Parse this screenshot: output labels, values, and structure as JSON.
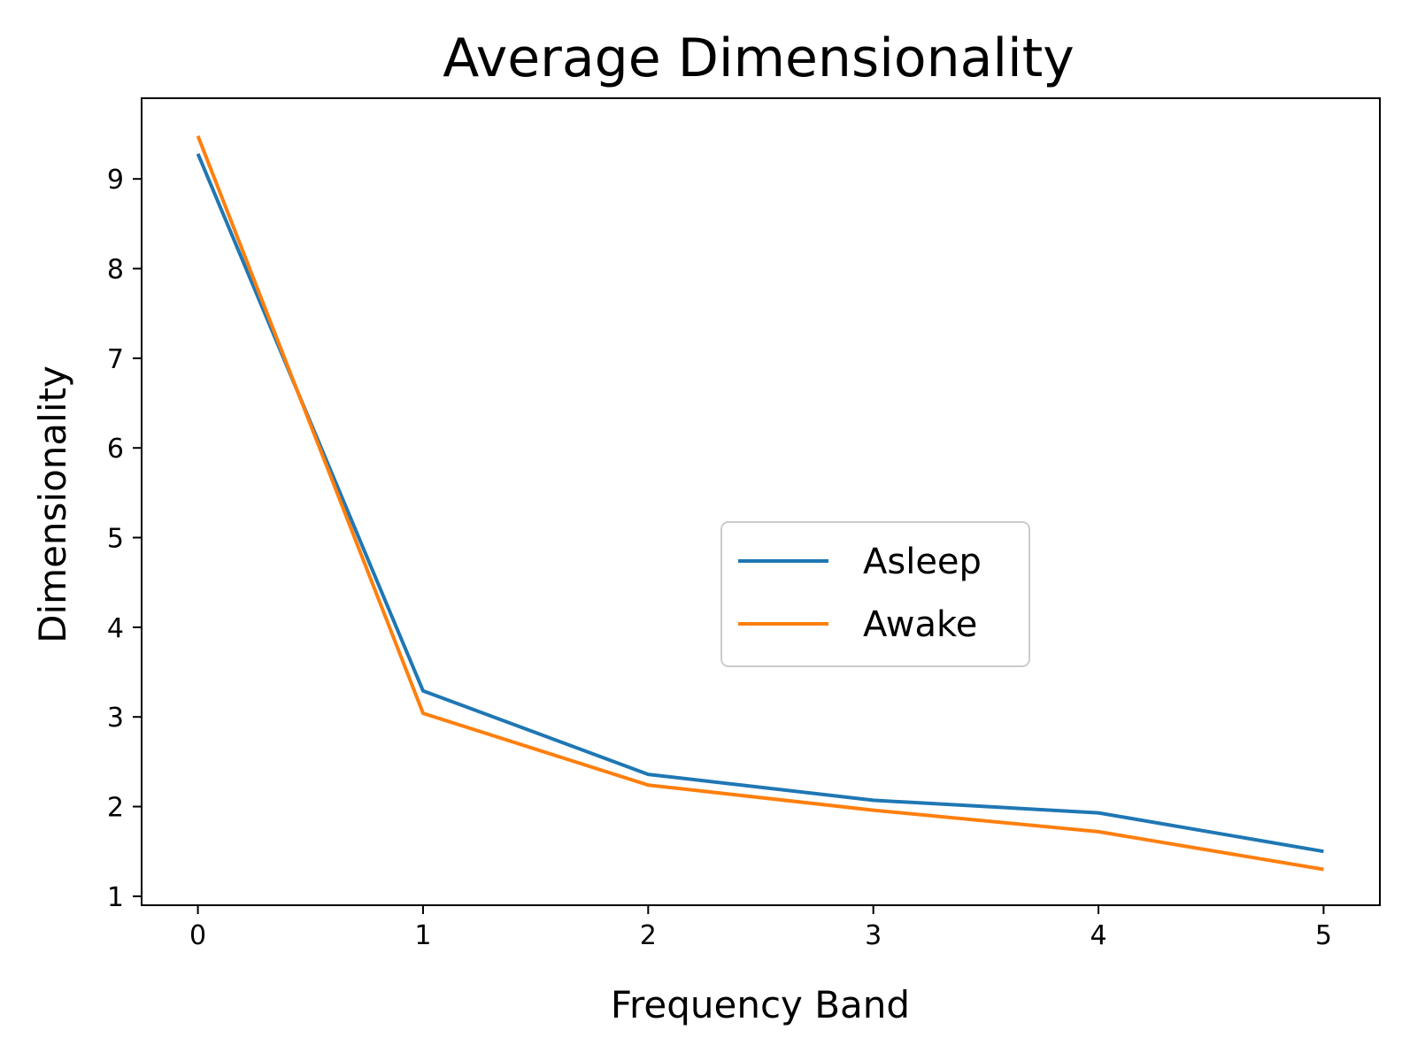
{
  "chart_data": {
    "type": "line",
    "title": "Average Dimensionality",
    "xlabel": "Frequency Band",
    "ylabel": "Dimensionality",
    "x": [
      0,
      1,
      2,
      3,
      4,
      5
    ],
    "xticks": [
      "0",
      "1",
      "2",
      "3",
      "4",
      "5"
    ],
    "yticks": [
      "1",
      "2",
      "3",
      "4",
      "5",
      "6",
      "7",
      "8",
      "9"
    ],
    "xlim": [
      -0.25,
      5.25
    ],
    "ylim": [
      0.9,
      9.9
    ],
    "grid": false,
    "legend_position": "center-right",
    "series": [
      {
        "name": "Asleep",
        "color": "#1f77b4",
        "values": [
          9.28,
          3.29,
          2.36,
          2.07,
          1.93,
          1.5
        ]
      },
      {
        "name": "Awake",
        "color": "#ff7f0e",
        "values": [
          9.48,
          3.04,
          2.24,
          1.96,
          1.72,
          1.3
        ]
      }
    ]
  }
}
